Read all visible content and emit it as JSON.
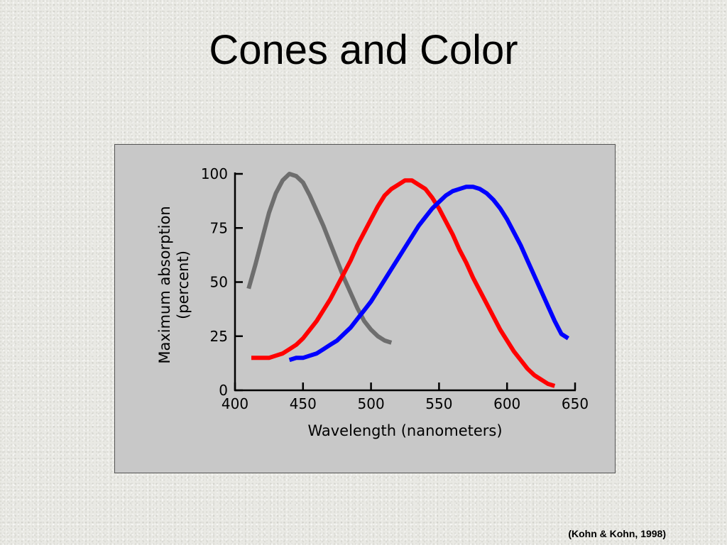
{
  "slide": {
    "title": "Cones and Color",
    "citation": "(Kohn & Kohn, 1998)"
  },
  "chart_data": {
    "type": "line",
    "xlabel": "Wavelength (nanometers)",
    "ylabel_lines": [
      "Maximum absorption",
      "(percent)"
    ],
    "xlim": [
      400,
      650
    ],
    "ylim": [
      0,
      100
    ],
    "xticks": [
      400,
      450,
      500,
      550,
      600,
      650
    ],
    "yticks": [
      0,
      25,
      50,
      75,
      100
    ],
    "grid": false,
    "legend": "none",
    "series": [
      {
        "color": "#6e6e6e",
        "x": [
          410,
          415,
          420,
          425,
          430,
          435,
          440,
          445,
          450,
          455,
          460,
          465,
          470,
          475,
          480,
          485,
          490,
          495,
          500,
          505,
          510,
          515
        ],
        "y": [
          47,
          58,
          70,
          82,
          91,
          97,
          100,
          99,
          96,
          90,
          83,
          76,
          68,
          60,
          52,
          45,
          38,
          32,
          28,
          25,
          23,
          22
        ]
      },
      {
        "color": "#ff0000",
        "x": [
          412,
          420,
          425,
          430,
          435,
          440,
          445,
          450,
          455,
          460,
          465,
          470,
          475,
          480,
          485,
          490,
          495,
          500,
          505,
          510,
          515,
          520,
          525,
          530,
          535,
          540,
          545,
          550,
          555,
          560,
          565,
          570,
          575,
          580,
          585,
          590,
          595,
          600,
          605,
          610,
          615,
          620,
          625,
          630,
          635
        ],
        "y": [
          15,
          15,
          15,
          16,
          17,
          19,
          21,
          24,
          28,
          32,
          37,
          42,
          48,
          54,
          60,
          67,
          73,
          79,
          85,
          90,
          93,
          95,
          97,
          97,
          95,
          93,
          89,
          84,
          78,
          72,
          65,
          59,
          52,
          46,
          40,
          34,
          28,
          23,
          18,
          14,
          10,
          7,
          5,
          3,
          2
        ]
      },
      {
        "color": "#0000ff",
        "x": [
          440,
          445,
          450,
          455,
          460,
          465,
          470,
          475,
          480,
          485,
          490,
          495,
          500,
          505,
          510,
          515,
          520,
          525,
          530,
          535,
          540,
          545,
          550,
          555,
          560,
          565,
          570,
          575,
          580,
          585,
          590,
          595,
          600,
          605,
          610,
          615,
          620,
          625,
          630,
          635,
          640,
          645
        ],
        "y": [
          14,
          15,
          15,
          16,
          17,
          19,
          21,
          23,
          26,
          29,
          33,
          37,
          41,
          46,
          51,
          56,
          61,
          66,
          71,
          76,
          80,
          84,
          87,
          90,
          92,
          93,
          94,
          94,
          93,
          91,
          88,
          84,
          79,
          73,
          67,
          60,
          53,
          46,
          39,
          32,
          26,
          24
        ]
      }
    ]
  },
  "colors": {
    "panel_background": "#c8c8c8",
    "axis": "#000000"
  }
}
